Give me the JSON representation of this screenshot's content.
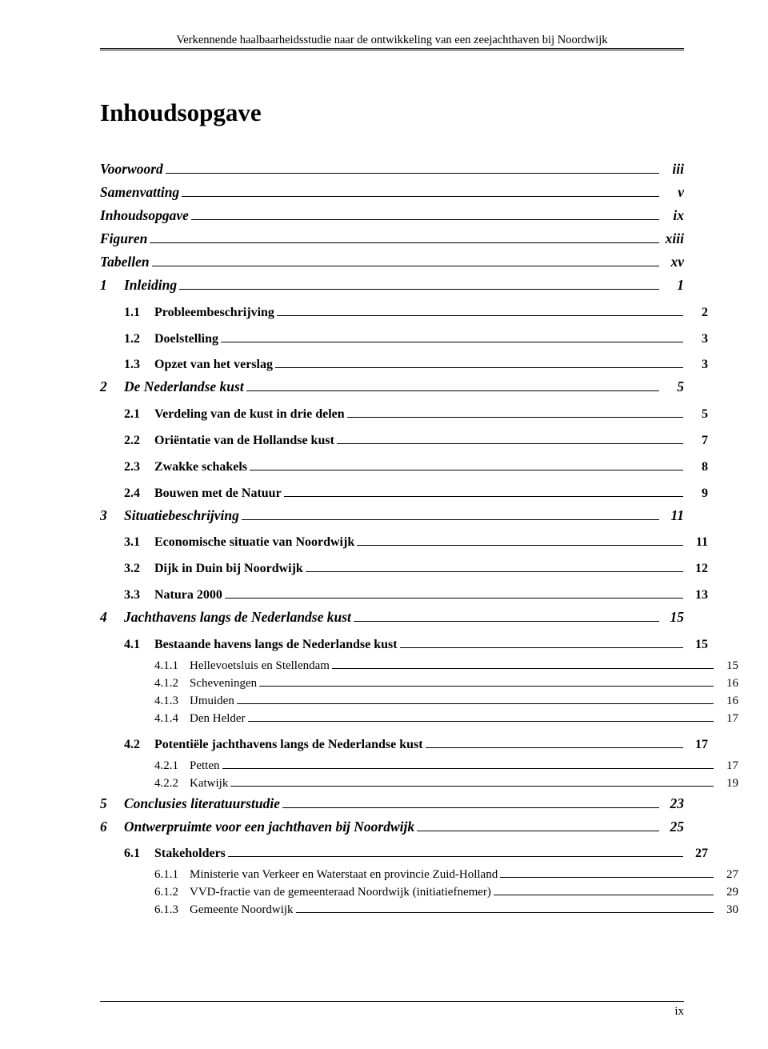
{
  "header": "Verkennende haalbaarheidsstudie naar de ontwikkeling van een zeejachthaven bij Noordwijk",
  "title": "Inhoudsopgave",
  "footer": "ix",
  "toc": [
    {
      "lvl": 0,
      "num": "",
      "label": "Voorwoord",
      "pg": "iii"
    },
    {
      "lvl": 0,
      "num": "",
      "label": "Samenvatting",
      "pg": "v"
    },
    {
      "lvl": 0,
      "num": "",
      "label": "Inhoudsopgave",
      "pg": "ix"
    },
    {
      "lvl": 0,
      "num": "",
      "label": "Figuren",
      "pg": "xiii"
    },
    {
      "lvl": 0,
      "num": "",
      "label": "Tabellen",
      "pg": "xv"
    },
    {
      "lvl": 1,
      "num": "1",
      "label": "Inleiding",
      "pg": "1"
    },
    {
      "lvl": 2,
      "num": "1.1",
      "label": "Probleembeschrijving",
      "pg": "2"
    },
    {
      "lvl": 2,
      "num": "1.2",
      "label": "Doelstelling",
      "pg": "3"
    },
    {
      "lvl": 2,
      "num": "1.3",
      "label": "Opzet van het verslag",
      "pg": "3"
    },
    {
      "lvl": 1,
      "num": "2",
      "label": "De Nederlandse kust",
      "pg": "5"
    },
    {
      "lvl": 2,
      "num": "2.1",
      "label": "Verdeling van de kust in drie delen",
      "pg": "5"
    },
    {
      "lvl": 2,
      "num": "2.2",
      "label": "Oriëntatie van de Hollandse kust",
      "pg": "7"
    },
    {
      "lvl": 2,
      "num": "2.3",
      "label": "Zwakke schakels",
      "pg": "8"
    },
    {
      "lvl": 2,
      "num": "2.4",
      "label": "Bouwen met de Natuur",
      "pg": "9"
    },
    {
      "lvl": 1,
      "num": "3",
      "label": "Situatiebeschrijving",
      "pg": "11"
    },
    {
      "lvl": 2,
      "num": "3.1",
      "label": "Economische situatie van Noordwijk",
      "pg": "11"
    },
    {
      "lvl": 2,
      "num": "3.2",
      "label": "Dijk in Duin bij Noordwijk",
      "pg": "12"
    },
    {
      "lvl": 2,
      "num": "3.3",
      "label": "Natura 2000",
      "pg": "13"
    },
    {
      "lvl": 1,
      "num": "4",
      "label": "Jachthavens langs de Nederlandse kust",
      "pg": "15"
    },
    {
      "lvl": 2,
      "num": "4.1",
      "label": "Bestaande havens langs de Nederlandse kust",
      "pg": "15"
    },
    {
      "lvl": 3,
      "num": "4.1.1",
      "label": "Hellevoetsluis en Stellendam",
      "pg": "15"
    },
    {
      "lvl": 3,
      "num": "4.1.2",
      "label": "Scheveningen",
      "pg": "16"
    },
    {
      "lvl": 3,
      "num": "4.1.3",
      "label": "IJmuiden",
      "pg": "16"
    },
    {
      "lvl": 3,
      "num": "4.1.4",
      "label": "Den Helder",
      "pg": "17"
    },
    {
      "lvl": 2,
      "num": "4.2",
      "label": "Potentiële jachthavens langs de Nederlandse kust",
      "pg": "17"
    },
    {
      "lvl": 3,
      "num": "4.2.1",
      "label": "Petten",
      "pg": "17"
    },
    {
      "lvl": 3,
      "num": "4.2.2",
      "label": "Katwijk",
      "pg": "19"
    },
    {
      "lvl": 1,
      "num": "5",
      "label": "Conclusies literatuurstudie",
      "pg": "23"
    },
    {
      "lvl": 1,
      "num": "6",
      "label": "Ontwerpruimte voor een jachthaven bij Noordwijk",
      "pg": "25"
    },
    {
      "lvl": 2,
      "num": "6.1",
      "label": "Stakeholders",
      "pg": "27"
    },
    {
      "lvl": 3,
      "num": "6.1.1",
      "label": "Ministerie van Verkeer en Waterstaat en provincie Zuid-Holland",
      "pg": "27"
    },
    {
      "lvl": 3,
      "num": "6.1.2",
      "label": "VVD-fractie van de gemeenteraad Noordwijk (initiatiefnemer)",
      "pg": "29"
    },
    {
      "lvl": 3,
      "num": "6.1.3",
      "label": "Gemeente Noordwijk",
      "pg": "30"
    }
  ]
}
